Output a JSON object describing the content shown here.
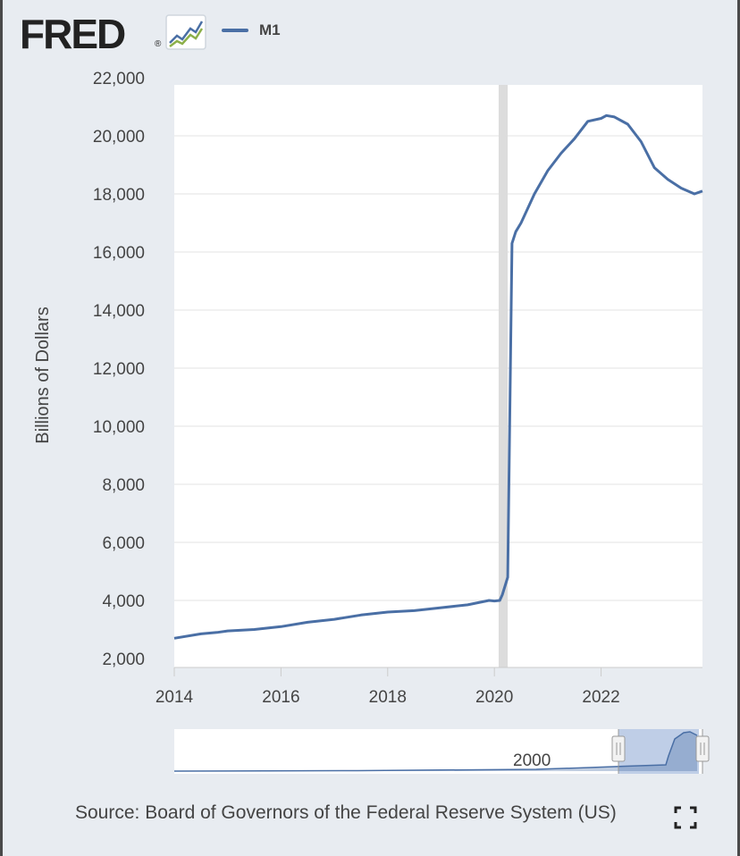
{
  "header": {
    "logo_text": "FRED",
    "logo_registered": "®",
    "logo_icon": "line-graph-icon",
    "legend_label": "M1",
    "legend_color": "#4a6fa5"
  },
  "source_text": "Source: Board of Governors of the Federal Reserve System (US)",
  "expand_icon": "fullscreen-expand-icon",
  "chart_data": {
    "type": "line",
    "ylabel": "Billions of Dollars",
    "xlim": [
      2014,
      2023.9
    ],
    "ylim": [
      2000,
      22000
    ],
    "x_ticks": [
      "2014",
      "2016",
      "2018",
      "2020",
      "2022"
    ],
    "y_ticks": [
      "2,000",
      "4,000",
      "6,000",
      "8,000",
      "10,000",
      "12,000",
      "14,000",
      "16,000",
      "18,000",
      "20,000",
      "22,000"
    ],
    "recession_band": [
      2020.08,
      2020.25
    ],
    "grid": true,
    "legend": "top-left",
    "series": [
      {
        "name": "M1",
        "color": "#4a6fa5",
        "x": [
          2013.95,
          2014.5,
          2014.8,
          2015.0,
          2015.5,
          2016.0,
          2016.5,
          2017.0,
          2017.5,
          2018.0,
          2018.5,
          2019.0,
          2019.5,
          2019.9,
          2020.0,
          2020.1,
          2020.15,
          2020.25,
          2020.33,
          2020.4,
          2020.5,
          2020.6,
          2020.75,
          2021.0,
          2021.25,
          2021.5,
          2021.75,
          2022.0,
          2022.1,
          2022.25,
          2022.5,
          2022.75,
          2023.0,
          2023.25,
          2023.5,
          2023.75,
          2023.9
        ],
        "y": [
          2700,
          2850,
          2900,
          2950,
          3000,
          3100,
          3250,
          3350,
          3500,
          3600,
          3650,
          3750,
          3850,
          4000,
          3980,
          4000,
          4200,
          4800,
          16300,
          16700,
          17000,
          17400,
          18000,
          18800,
          19400,
          19900,
          20500,
          20600,
          20700,
          20650,
          20400,
          19800,
          18900,
          18500,
          18200,
          18000,
          18100
        ]
      }
    ]
  },
  "navigator": {
    "label": "2000",
    "handle_icon": "drag-handle-icon"
  }
}
